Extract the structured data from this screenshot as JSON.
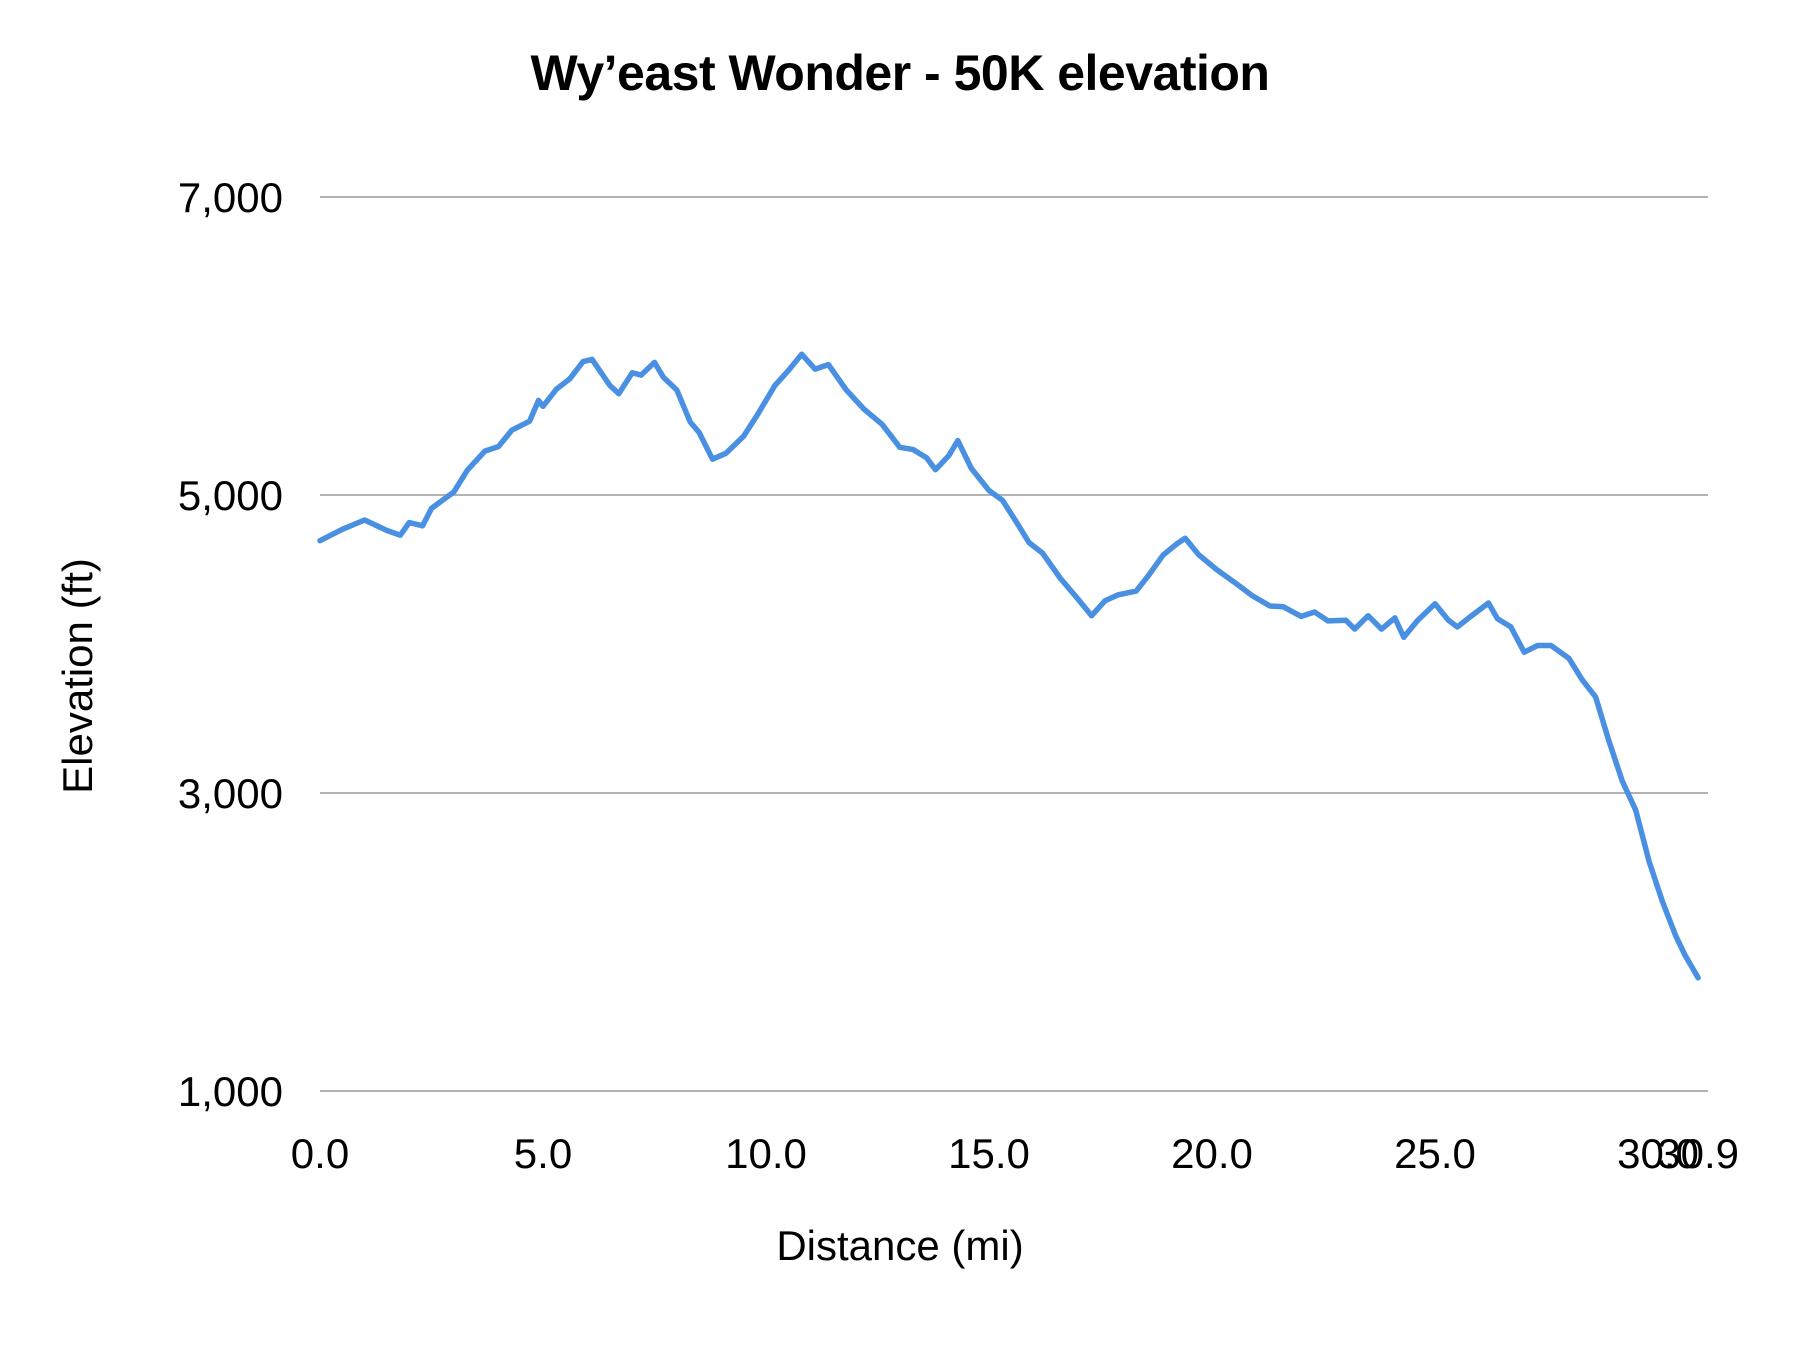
{
  "chart_data": {
    "type": "line",
    "title": "Wy’east Wonder - 50K elevation",
    "xlabel": "Distance (mi)",
    "ylabel": "Elevation (ft)",
    "xlim": [
      0,
      30.9
    ],
    "ylim": [
      1000,
      7000
    ],
    "grid": {
      "horizontal": true,
      "vertical": false
    },
    "legend": "none",
    "y_ticks": [
      {
        "value": 7000,
        "label": "7,000"
      },
      {
        "value": 5000,
        "label": "5,000"
      },
      {
        "value": 3000,
        "label": "3,000"
      },
      {
        "value": 1000,
        "label": "1,000"
      }
    ],
    "x_ticks": [
      {
        "value": 0,
        "label": "0.0"
      },
      {
        "value": 5,
        "label": "5.0"
      },
      {
        "value": 10,
        "label": "10.0"
      },
      {
        "value": 15,
        "label": "15.0"
      },
      {
        "value": 20,
        "label": "20.0"
      },
      {
        "value": 25,
        "label": "25.0"
      },
      {
        "value": 30,
        "label": "30.0"
      },
      {
        "value": 30.9,
        "label": "30.9"
      }
    ],
    "series": [
      {
        "name": "Elevation",
        "color": "#4a90e2",
        "x": [
          0.0,
          0.5,
          1.0,
          1.5,
          1.8,
          2.0,
          2.3,
          2.5,
          3.0,
          3.3,
          3.7,
          4.0,
          4.3,
          4.7,
          4.9,
          5.0,
          5.3,
          5.6,
          5.9,
          6.1,
          6.5,
          6.7,
          7.0,
          7.2,
          7.5,
          7.7,
          8.0,
          8.3,
          8.5,
          8.8,
          9.1,
          9.5,
          9.8,
          10.2,
          10.5,
          10.8,
          11.1,
          11.4,
          11.8,
          12.2,
          12.6,
          13.0,
          13.3,
          13.6,
          13.8,
          14.1,
          14.3,
          14.6,
          15.0,
          15.3,
          15.6,
          15.9,
          16.2,
          16.6,
          17.0,
          17.3,
          17.6,
          17.9,
          18.3,
          18.6,
          18.9,
          19.2,
          19.4,
          19.7,
          20.1,
          20.5,
          20.9,
          21.3,
          21.6,
          22.0,
          22.3,
          22.6,
          23.0,
          23.2,
          23.5,
          23.8,
          24.1,
          24.3,
          24.6,
          25.0,
          25.3,
          25.5,
          25.8,
          26.2,
          26.4,
          26.7,
          27.0,
          27.3,
          27.6,
          28.0,
          28.3,
          28.6,
          28.9,
          29.2,
          29.5,
          29.8,
          30.1,
          30.4,
          30.6,
          30.9
        ],
        "values": [
          4693,
          4770,
          4832,
          4762,
          4730,
          4815,
          4793,
          4910,
          5020,
          5165,
          5295,
          5325,
          5435,
          5495,
          5635,
          5595,
          5710,
          5780,
          5895,
          5910,
          5735,
          5680,
          5820,
          5805,
          5890,
          5790,
          5705,
          5490,
          5420,
          5240,
          5280,
          5395,
          5535,
          5735,
          5835,
          5945,
          5845,
          5875,
          5705,
          5575,
          5475,
          5320,
          5305,
          5250,
          5170,
          5265,
          5365,
          5180,
          5030,
          4965,
          4825,
          4680,
          4610,
          4440,
          4300,
          4190,
          4290,
          4330,
          4355,
          4470,
          4595,
          4670,
          4710,
          4600,
          4500,
          4415,
          4325,
          4255,
          4250,
          4185,
          4215,
          4155,
          4160,
          4100,
          4190,
          4100,
          4175,
          4045,
          4155,
          4270,
          4160,
          4115,
          4185,
          4275,
          4170,
          4115,
          3945,
          3990,
          3990,
          3905,
          3760,
          3645,
          3350,
          3080,
          2885,
          2540,
          2270,
          2040,
          1915,
          1760
        ]
      }
    ]
  }
}
